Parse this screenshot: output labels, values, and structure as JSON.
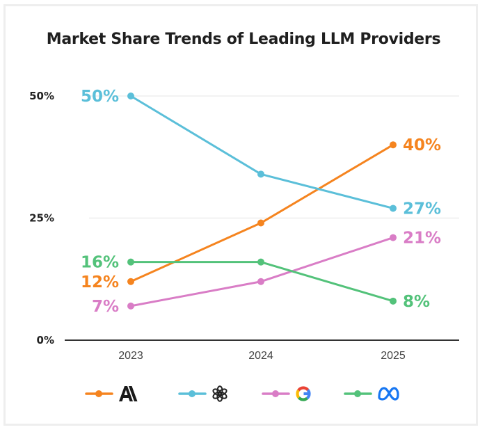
{
  "chart_data": {
    "type": "line",
    "title": "Market Share Trends of Leading LLM Providers",
    "xlabel": "",
    "ylabel": "",
    "x": [
      "2023",
      "2024",
      "2025"
    ],
    "ylim": [
      0,
      50
    ],
    "yticks": [
      0,
      25,
      50
    ],
    "ytick_labels": [
      "0%",
      "25%",
      "50%"
    ],
    "grid": true,
    "legend_position": "bottom",
    "series": [
      {
        "name": "Anthropic",
        "icon": "anthropic-logo-icon",
        "color": "#f5841f",
        "values": [
          12,
          24,
          40
        ],
        "labels": [
          "12%",
          null,
          "40%"
        ]
      },
      {
        "name": "OpenAI",
        "icon": "openai-logo-icon",
        "color": "#5bbfd9",
        "values": [
          50,
          34,
          27
        ],
        "labels": [
          "50%",
          null,
          "27%"
        ]
      },
      {
        "name": "Google",
        "icon": "google-logo-icon",
        "color": "#d97dc6",
        "values": [
          7,
          12,
          21
        ],
        "labels": [
          "7%",
          null,
          "21%"
        ]
      },
      {
        "name": "Meta",
        "icon": "meta-logo-icon",
        "color": "#53c27a",
        "values": [
          16,
          16,
          8
        ],
        "labels": [
          "16%",
          null,
          "8%"
        ]
      }
    ]
  }
}
